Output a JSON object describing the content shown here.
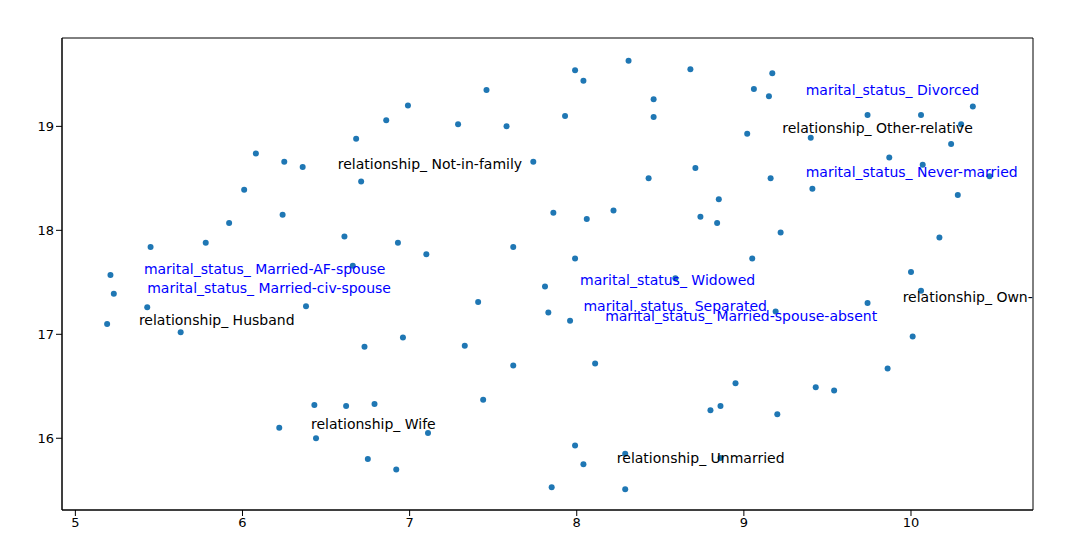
{
  "chart_data": {
    "type": "scatter",
    "color": "#1f77b4",
    "marker": "circle",
    "grid": false,
    "xlim": [
      4.92,
      10.73
    ],
    "ylim": [
      15.31,
      19.85
    ],
    "xticks": [
      5,
      6,
      7,
      8,
      9,
      10
    ],
    "yticks": [
      16,
      17,
      18,
      19
    ],
    "x": [
      8.31,
      7.99,
      8.04,
      8.68,
      9.17,
      9.06,
      9.15,
      7.46,
      6.99,
      7.29,
      6.86,
      6.68,
      7.58,
      7.93,
      8.46,
      8.46,
      9.02,
      9.74,
      10.06,
      10.37,
      10.3,
      10.24,
      9.4,
      9.87,
      10.07,
      10.47,
      10.28,
      9.16,
      9.41,
      8.43,
      8.71,
      8.85,
      7.74,
      6.71,
      6.36,
      6.08,
      6.25,
      6.01,
      5.92,
      6.24,
      7.86,
      8.06,
      8.22,
      8.74,
      8.84,
      9.22,
      10.17,
      5.45,
      5.78,
      6.61,
      6.93,
      7.1,
      7.62,
      7.99,
      9.05,
      10.0,
      5.21,
      5.23,
      6.66,
      7.81,
      8.59,
      10.06,
      5.43,
      6.38,
      7.41,
      7.83,
      7.96,
      9.19,
      9.74,
      5.19,
      5.63,
      6.96,
      6.73,
      7.33,
      10.01,
      8.11,
      7.62,
      9.86,
      8.95,
      9.43,
      9.54,
      7.44,
      6.43,
      6.62,
      6.79,
      8.86,
      8.8,
      9.2,
      7.11,
      6.44,
      6.22,
      7.99,
      6.75,
      6.92,
      8.04,
      8.86,
      7.85,
      8.29,
      8.29
    ],
    "y": [
      19.63,
      19.54,
      19.44,
      19.55,
      19.51,
      19.36,
      19.29,
      19.35,
      19.2,
      19.02,
      19.06,
      18.88,
      19.0,
      19.1,
      19.26,
      19.09,
      18.93,
      19.11,
      19.11,
      19.19,
      19.02,
      18.83,
      18.89,
      18.7,
      18.63,
      18.52,
      18.34,
      18.5,
      18.4,
      18.5,
      18.6,
      18.3,
      18.66,
      18.47,
      18.61,
      18.74,
      18.66,
      18.39,
      18.07,
      18.15,
      18.17,
      18.11,
      18.19,
      18.13,
      18.07,
      17.98,
      17.93,
      17.84,
      17.88,
      17.94,
      17.88,
      17.77,
      17.84,
      17.73,
      17.73,
      17.6,
      17.57,
      17.39,
      17.66,
      17.46,
      17.54,
      17.42,
      17.26,
      17.27,
      17.31,
      17.21,
      17.13,
      17.22,
      17.3,
      17.1,
      17.02,
      16.97,
      16.88,
      16.89,
      16.98,
      16.72,
      16.7,
      16.67,
      16.53,
      16.49,
      16.46,
      16.37,
      16.32,
      16.31,
      16.33,
      16.31,
      16.27,
      16.23,
      16.05,
      16.0,
      16.1,
      15.93,
      15.8,
      15.7,
      15.75,
      15.81,
      15.53,
      15.51,
      15.85
    ],
    "annotations": [
      {
        "text": "marital_status_ Divorced",
        "x": 9.37,
        "y": 19.34,
        "color": "#0000ff"
      },
      {
        "text": "relationship_ Other-relative",
        "x": 9.23,
        "y": 18.97,
        "color": "#000000"
      },
      {
        "text": "relationship_ Not-in-family",
        "x": 6.57,
        "y": 18.63,
        "color": "#000000"
      },
      {
        "text": "marital_status_ Never-married",
        "x": 9.37,
        "y": 18.55,
        "color": "#0000ff"
      },
      {
        "text": "marital_status_ Married-AF-spouse",
        "x": 5.41,
        "y": 17.62,
        "color": "#0000ff"
      },
      {
        "text": "marital_status_ Married-civ-spouse",
        "x": 5.43,
        "y": 17.44,
        "color": "#0000ff"
      },
      {
        "text": "relationship_ Husband",
        "x": 5.38,
        "y": 17.13,
        "color": "#000000"
      },
      {
        "text": "marital_status_ Widowed",
        "x": 8.02,
        "y": 17.51,
        "color": "#0000ff"
      },
      {
        "text": "marital_status_ Separated",
        "x": 8.04,
        "y": 17.26,
        "color": "#0000ff"
      },
      {
        "text": "marital_status_ Married-spouse-absent",
        "x": 8.17,
        "y": 17.17,
        "color": "#0000ff"
      },
      {
        "text": "relationship_ Own-child",
        "x": 9.95,
        "y": 17.35,
        "color": "#000000"
      },
      {
        "text": "relationship_ Wife",
        "x": 6.41,
        "y": 16.13,
        "color": "#000000"
      },
      {
        "text": "relationship_ Unmarried",
        "x": 8.24,
        "y": 15.8,
        "color": "#000000"
      }
    ]
  }
}
